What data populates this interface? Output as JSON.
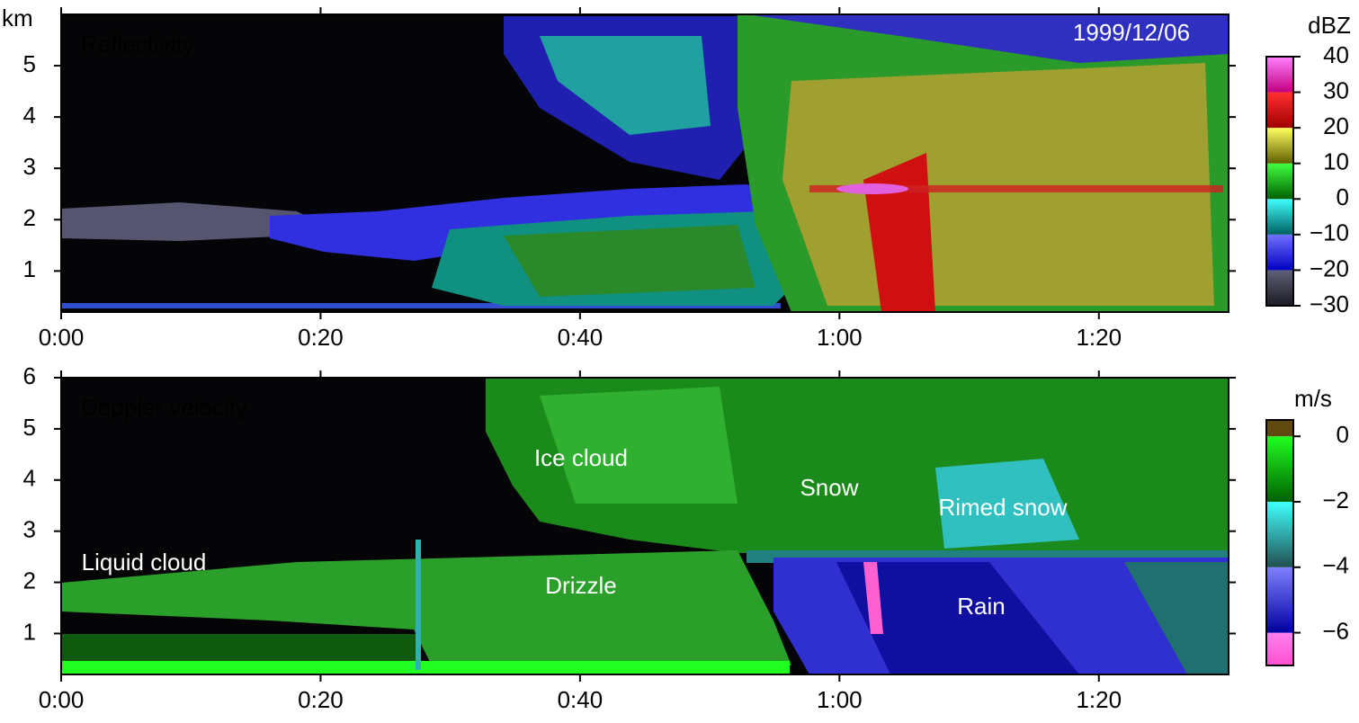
{
  "chart_data": [
    {
      "type": "heatmap",
      "title": "Reflectivity",
      "ylabel": "km",
      "xlim": [
        0,
        90
      ],
      "xticks": [
        {
          "value": 0,
          "label": "0:00"
        },
        {
          "value": 20,
          "label": "0:20"
        },
        {
          "value": 40,
          "label": "0:40"
        },
        {
          "value": 60,
          "label": "1:00"
        },
        {
          "value": 80,
          "label": "1:20"
        }
      ],
      "ylim": [
        0.2,
        6
      ],
      "yticks": [
        1,
        2,
        3,
        4,
        5
      ],
      "annotations": [
        "1999/12/06"
      ],
      "colorbar": {
        "label": "dBZ",
        "lim": [
          -30,
          40
        ],
        "ticks": [
          40,
          30,
          20,
          10,
          0,
          {
            "value": -10,
            "label": "−10"
          },
          {
            "value": -20,
            "label": "−20"
          },
          {
            "value": -30,
            "label": "−30"
          }
        ],
        "bounds": [
          -30,
          -20,
          -10,
          0,
          10,
          20,
          30,
          40
        ],
        "colors": [
          [
            "#1a1a22",
            "#606078"
          ],
          [
            "#0000c0",
            "#7070ff"
          ],
          [
            "#006060",
            "#40ffff"
          ],
          [
            "#006000",
            "#40ff40"
          ],
          [
            "#606000",
            "#ffff60"
          ],
          [
            "#a00000",
            "#ff3030"
          ],
          [
            "#c00080",
            "#ff80ff"
          ]
        ]
      }
    },
    {
      "type": "heatmap",
      "title": "Doppler velocity",
      "xlim": [
        0,
        90
      ],
      "xticks": [
        {
          "value": 0,
          "label": "0:00"
        },
        {
          "value": 20,
          "label": "0:20"
        },
        {
          "value": 40,
          "label": "0:40"
        },
        {
          "value": 60,
          "label": "1:00"
        },
        {
          "value": 80,
          "label": "1:20"
        }
      ],
      "ylim": [
        0.2,
        6
      ],
      "yticks": [
        1,
        2,
        3,
        4,
        5,
        6
      ],
      "annotations": [
        "Liquid cloud",
        "Ice cloud",
        "Drizzle",
        "Snow",
        "Rimed snow",
        "Rain"
      ],
      "colorbar": {
        "label": "m/s",
        "lim": [
          -7,
          0.5
        ],
        "ticks": [
          0,
          {
            "value": -2,
            "label": "−2"
          },
          {
            "value": -4,
            "label": "−4"
          },
          {
            "value": -6,
            "label": "−6"
          }
        ],
        "bounds": [
          -7,
          -6,
          -4,
          -2,
          0,
          0.5
        ],
        "colors": [
          [
            "#ff50d0",
            "#ff80f0"
          ],
          [
            "#0000a0",
            "#8080ff"
          ],
          [
            "#205050",
            "#40ffff"
          ],
          [
            "#006000",
            "#20ff20"
          ],
          [
            "#604a10",
            "#604a10"
          ]
        ]
      }
    }
  ]
}
